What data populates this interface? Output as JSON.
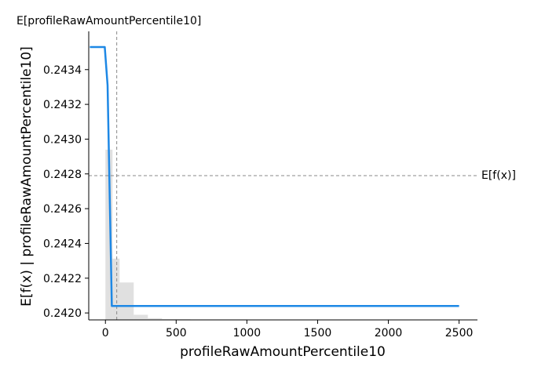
{
  "chart_data": {
    "type": "line",
    "top_label": "E[profileRawAmountPercentile10]",
    "xlabel": "profileRawAmountPercentile10",
    "ylabel": "E[f(x) | profileRawAmountPercentile10]",
    "ref_line_label": "E[f(x)]",
    "xlim": [
      -118,
      2630
    ],
    "ylim": [
      0.24196,
      0.24362
    ],
    "x_ticks": [
      0,
      500,
      1000,
      1500,
      2000,
      2500
    ],
    "x_tick_labels": [
      "0",
      "500",
      "1000",
      "1500",
      "2000",
      "2500"
    ],
    "y_ticks": [
      0.242,
      0.2422,
      0.2424,
      0.2426,
      0.2428,
      0.243,
      0.2432,
      0.2434
    ],
    "y_tick_labels": [
      "0.2420",
      "0.2422",
      "0.2424",
      "0.2426",
      "0.2428",
      "0.2430",
      "0.2432",
      "0.2434"
    ],
    "expected_feature_value": 80,
    "expected_prediction": 0.24279,
    "series": [
      {
        "x": [
          -110,
          -5,
          15,
          45,
          2500
        ],
        "y": [
          0.24353,
          0.24353,
          0.24331,
          0.24204,
          0.24204
        ],
        "color": "#1e88e5"
      }
    ],
    "histogram": {
      "bin_edges": [
        0,
        50,
        100,
        200,
        300,
        400,
        600,
        1000,
        2500
      ],
      "relative_heights": [
        1.0,
        0.36,
        0.22,
        0.03,
        0.01,
        0.005,
        0.003,
        0.002
      ],
      "color": "#cccccc"
    },
    "grid": false
  }
}
